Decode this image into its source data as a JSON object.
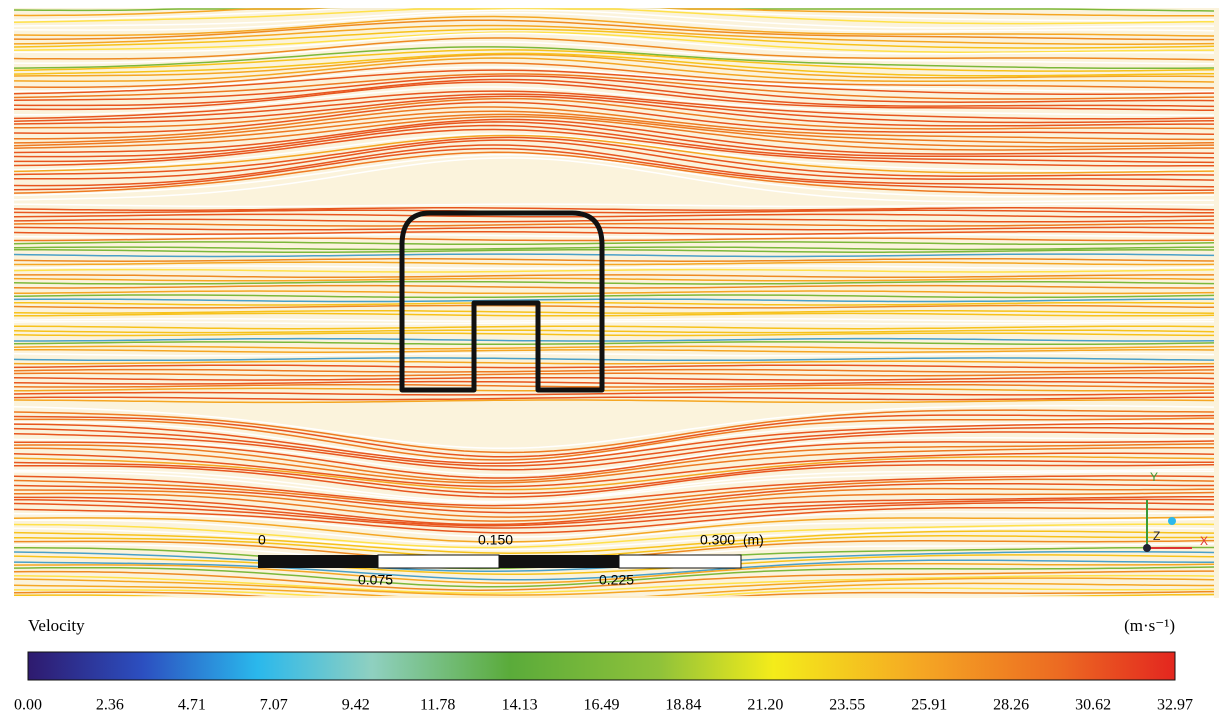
{
  "figure": {
    "scale_bar": {
      "labels_top": [
        "0",
        "0.150",
        "0.300  (m)"
      ],
      "labels_bottom": [
        "0.075",
        "0.225"
      ]
    },
    "axes_triad": {
      "x": "X",
      "y": "Y",
      "z": "Z"
    },
    "colorbar": {
      "title": "Velocity",
      "unit": "(m·s⁻¹)",
      "ticks": [
        "0.00",
        "2.36",
        "4.71",
        "7.07",
        "9.42",
        "11.78",
        "14.13",
        "16.49",
        "18.84",
        "21.20",
        "23.55",
        "25.91",
        "28.26",
        "30.62",
        "32.97"
      ]
    }
  }
}
